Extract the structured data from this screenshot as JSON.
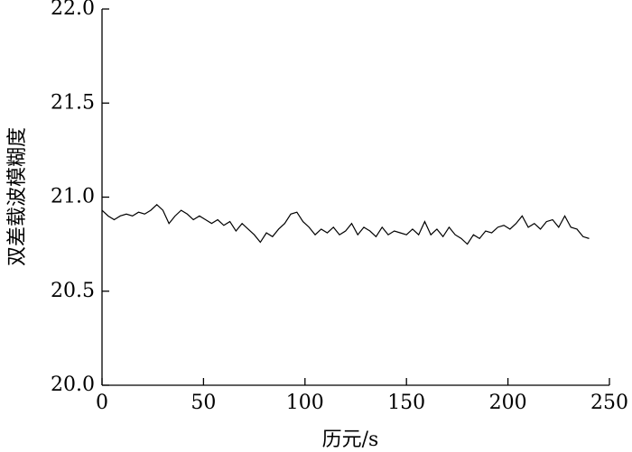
{
  "chart_data": {
    "type": "line",
    "x_label": "历元/s",
    "y_label": "双差载波模糊度",
    "x": [
      0,
      3,
      6,
      9,
      12,
      15,
      18,
      21,
      24,
      27,
      30,
      33,
      36,
      39,
      42,
      45,
      48,
      51,
      54,
      57,
      60,
      63,
      66,
      69,
      72,
      75,
      78,
      81,
      84,
      87,
      90,
      93,
      96,
      99,
      102,
      105,
      108,
      111,
      114,
      117,
      120,
      123,
      126,
      129,
      132,
      135,
      138,
      141,
      144,
      147,
      150,
      153,
      156,
      159,
      162,
      165,
      168,
      171,
      174,
      177,
      180,
      183,
      186,
      189,
      192,
      195,
      198,
      201,
      204,
      207,
      210,
      213,
      216,
      219,
      222,
      225,
      228,
      231,
      234,
      237,
      240
    ],
    "series": [
      {
        "color": "#000000",
        "values": [
          20.93,
          20.9,
          20.88,
          20.9,
          20.91,
          20.9,
          20.92,
          20.91,
          20.93,
          20.96,
          20.93,
          20.86,
          20.9,
          20.93,
          20.91,
          20.88,
          20.9,
          20.88,
          20.86,
          20.88,
          20.85,
          20.87,
          20.82,
          20.86,
          20.83,
          20.8,
          20.76,
          20.81,
          20.79,
          20.83,
          20.86,
          20.91,
          20.92,
          20.87,
          20.84,
          20.8,
          20.83,
          20.81,
          20.84,
          20.8,
          20.82,
          20.86,
          20.8,
          20.84,
          20.82,
          20.79,
          20.84,
          20.8,
          20.82,
          20.81,
          20.8,
          20.83,
          20.8,
          20.87,
          20.8,
          20.83,
          20.79,
          20.84,
          20.8,
          20.78,
          20.75,
          20.8,
          20.78,
          20.82,
          20.81,
          20.84,
          20.85,
          20.83,
          20.86,
          20.9,
          20.84,
          20.86,
          20.83,
          20.87,
          20.88,
          20.84,
          20.9,
          20.84,
          20.83,
          20.79,
          20.78
        ]
      }
    ],
    "xlim": [
      0,
      250
    ],
    "xticks": [
      0,
      50,
      100,
      150,
      200,
      250
    ],
    "ylim": [
      20.0,
      22.0
    ],
    "yticks": [
      {
        "value": 20,
        "label": "20.0"
      },
      20.5,
      {
        "value": 21,
        "label": "21.0"
      },
      21.5,
      {
        "value": 22,
        "label": "22.0"
      }
    ]
  }
}
